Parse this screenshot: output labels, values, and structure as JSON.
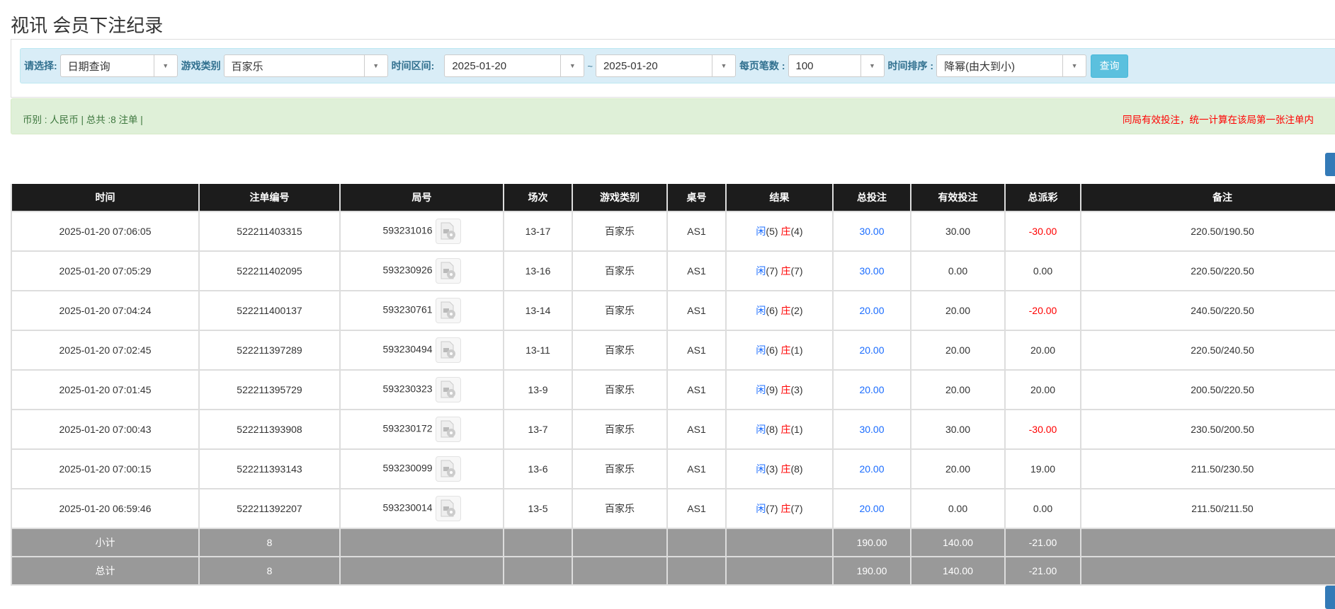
{
  "page_title": "视讯 会员下注纪录",
  "filters": {
    "select_label": "请选择:",
    "select_value": "日期查询",
    "game_type_label": "游戏类别",
    "game_type_value": "百家乐",
    "time_range_label": "时间区间:",
    "date_from": "2025-01-20",
    "tilde": "~",
    "date_to": "2025-01-20",
    "per_page_label": "每页笔数 :",
    "per_page_value": "100",
    "sort_label": "时间排序 :",
    "sort_value": "降幂(由大到小)",
    "query_button": "查询"
  },
  "summary": {
    "left": "币别 : 人民币 | 总共 :8 注单 |",
    "right": "同局有效投注，统一计算在该局第一张注单内"
  },
  "table": {
    "headers": [
      "时间",
      "注单编号",
      "局号",
      "场次",
      "游戏类别",
      "桌号",
      "结果",
      "总投注",
      "有效投注",
      "总派彩",
      "备注"
    ],
    "result_player": "闲",
    "result_banker": "庄",
    "rows": [
      {
        "time": "2025-01-20 07:06:05",
        "bet_id": "522211403315",
        "round": "593231016",
        "shoe": "13-17",
        "game": "百家乐",
        "table": "AS1",
        "player": "(5)",
        "banker": "(4)",
        "total": "30.00",
        "valid": "30.00",
        "payout": "-30.00",
        "payout_neg": true,
        "note": "220.50/190.50"
      },
      {
        "time": "2025-01-20 07:05:29",
        "bet_id": "522211402095",
        "round": "593230926",
        "shoe": "13-16",
        "game": "百家乐",
        "table": "AS1",
        "player": "(7)",
        "banker": "(7)",
        "total": "30.00",
        "valid": "0.00",
        "payout": "0.00",
        "payout_neg": false,
        "note": "220.50/220.50"
      },
      {
        "time": "2025-01-20 07:04:24",
        "bet_id": "522211400137",
        "round": "593230761",
        "shoe": "13-14",
        "game": "百家乐",
        "table": "AS1",
        "player": "(6)",
        "banker": "(2)",
        "total": "20.00",
        "valid": "20.00",
        "payout": "-20.00",
        "payout_neg": true,
        "note": "240.50/220.50"
      },
      {
        "time": "2025-01-20 07:02:45",
        "bet_id": "522211397289",
        "round": "593230494",
        "shoe": "13-11",
        "game": "百家乐",
        "table": "AS1",
        "player": "(6)",
        "banker": "(1)",
        "total": "20.00",
        "valid": "20.00",
        "payout": "20.00",
        "payout_neg": false,
        "note": "220.50/240.50"
      },
      {
        "time": "2025-01-20 07:01:45",
        "bet_id": "522211395729",
        "round": "593230323",
        "shoe": "13-9",
        "game": "百家乐",
        "table": "AS1",
        "player": "(9)",
        "banker": "(3)",
        "total": "20.00",
        "valid": "20.00",
        "payout": "20.00",
        "payout_neg": false,
        "note": "200.50/220.50"
      },
      {
        "time": "2025-01-20 07:00:43",
        "bet_id": "522211393908",
        "round": "593230172",
        "shoe": "13-7",
        "game": "百家乐",
        "table": "AS1",
        "player": "(8)",
        "banker": "(1)",
        "total": "30.00",
        "valid": "30.00",
        "payout": "-30.00",
        "payout_neg": true,
        "note": "230.50/200.50"
      },
      {
        "time": "2025-01-20 07:00:15",
        "bet_id": "522211393143",
        "round": "593230099",
        "shoe": "13-6",
        "game": "百家乐",
        "table": "AS1",
        "player": "(3)",
        "banker": "(8)",
        "total": "20.00",
        "valid": "20.00",
        "payout": "19.00",
        "payout_neg": false,
        "note": "211.50/230.50"
      },
      {
        "time": "2025-01-20 06:59:46",
        "bet_id": "522211392207",
        "round": "593230014",
        "shoe": "13-5",
        "game": "百家乐",
        "table": "AS1",
        "player": "(7)",
        "banker": "(7)",
        "total": "20.00",
        "valid": "0.00",
        "payout": "0.00",
        "payout_neg": false,
        "note": "211.50/211.50"
      }
    ],
    "subtotal": {
      "label": "小计",
      "count": "8",
      "total": "190.00",
      "valid": "140.00",
      "payout": "-21.00"
    },
    "grandtotal": {
      "label": "总计",
      "count": "8",
      "total": "190.00",
      "valid": "140.00",
      "payout": "-21.00"
    }
  },
  "colors": {
    "header_bg": "#1c1c1c",
    "filter_bg": "#d9edf7",
    "summary_bg": "#dff0d8",
    "query_button": "#5bc0de",
    "player": "#1a6cff",
    "banker": "#ff0000",
    "sum_row_bg": "#999999"
  }
}
